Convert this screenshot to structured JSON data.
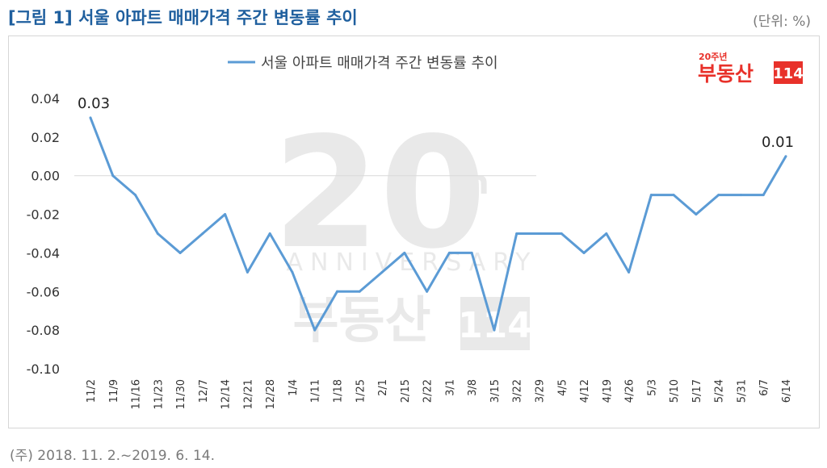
{
  "figure": {
    "title": "[그림 1] 서울 아파트 매매가격 주간 변동률 추이",
    "unit": "(단위: %)",
    "note": "(주) 2018. 11. 2.~2019. 6. 14.",
    "logo": {
      "badge_text": "20주년",
      "brand": "부동산",
      "number": "114",
      "colors": {
        "red": "#e8312a"
      }
    }
  },
  "chart_data": {
    "type": "line",
    "legend": "서울 아파트 매매가격 주간 변동률 추이",
    "categories": [
      "11/2",
      "11/9",
      "11/16",
      "11/23",
      "11/30",
      "12/7",
      "12/14",
      "12/21",
      "12/28",
      "1/4",
      "1/11",
      "1/18",
      "1/25",
      "2/1",
      "2/15",
      "2/22",
      "3/1",
      "3/8",
      "3/15",
      "3/22",
      "3/29",
      "4/5",
      "4/12",
      "4/19",
      "4/26",
      "5/3",
      "5/10",
      "5/17",
      "5/24",
      "5/31",
      "6/7",
      "6/14"
    ],
    "series": [
      {
        "name": "서울 아파트 매매가격 주간 변동률 추이",
        "values": [
          0.03,
          0.0,
          -0.01,
          -0.03,
          -0.04,
          -0.03,
          -0.02,
          -0.05,
          -0.03,
          -0.05,
          -0.08,
          -0.06,
          -0.06,
          -0.05,
          -0.04,
          -0.06,
          -0.04,
          -0.04,
          -0.08,
          -0.03,
          -0.03,
          -0.03,
          -0.04,
          -0.03,
          -0.05,
          -0.01,
          -0.01,
          -0.02,
          -0.01,
          -0.01,
          -0.01,
          0.01
        ],
        "color": "#5b9bd5"
      }
    ],
    "data_labels": [
      {
        "index": 0,
        "text": "0.03"
      },
      {
        "index": 31,
        "text": "0.01"
      }
    ],
    "yticks": [
      "0.04",
      "0.02",
      "0.00",
      "-0.02",
      "-0.04",
      "-0.06",
      "-0.08",
      "-0.10"
    ],
    "ylim": [
      -0.1,
      0.04
    ],
    "zero_line": true,
    "watermark": {
      "number": "20",
      "suffix": "th",
      "word": "ANNIVERSARY",
      "brand": "부동산",
      "brand_number": "114"
    },
    "legend_position": "top-center"
  }
}
